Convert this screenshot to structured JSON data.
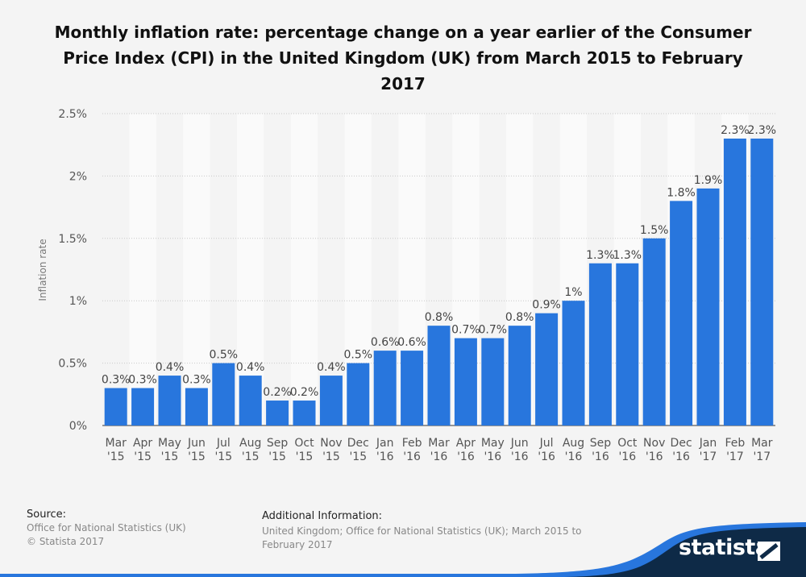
{
  "chart_data": {
    "type": "bar",
    "title": "Monthly inflation rate: percentage change on a year earlier of the Consumer Price Index (CPI) in the United Kingdom (UK) from March 2015 to February 2017",
    "ylabel": "Inflation rate",
    "xlabel": "",
    "categories": [
      "Mar '15",
      "Apr '15",
      "May '15",
      "Jun '15",
      "Jul '15",
      "Aug '15",
      "Sep '15",
      "Oct '15",
      "Nov '15",
      "Dec '15",
      "Jan '16",
      "Feb '16",
      "Mar '16",
      "Apr '16",
      "May '16",
      "Jun '16",
      "Jul '16",
      "Aug '16",
      "Sep '16",
      "Oct '16",
      "Nov '16",
      "Dec '16",
      "Jan '17",
      "Feb '17",
      "Mar '17"
    ],
    "values": [
      0.3,
      0.3,
      0.4,
      0.3,
      0.5,
      0.4,
      0.2,
      0.2,
      0.4,
      0.5,
      0.6,
      0.6,
      0.8,
      0.7,
      0.7,
      0.8,
      0.9,
      1,
      1.3,
      1.3,
      1.5,
      1.8,
      1.9,
      2.3,
      2.3
    ],
    "data_labels": [
      "0.3%",
      "0.3%",
      "0.4%",
      "0.3%",
      "0.5%",
      "0.4%",
      "0.2%",
      "0.2%",
      "0.4%",
      "0.5%",
      "0.6%",
      "0.6%",
      "0.8%",
      "0.7%",
      "0.7%",
      "0.8%",
      "0.9%",
      "1%",
      "1.3%",
      "1.3%",
      "1.5%",
      "1.8%",
      "1.9%",
      "2.3%",
      "2.3%"
    ],
    "ylim": [
      0,
      2.5
    ],
    "yticks": [
      0,
      0.5,
      1,
      1.5,
      2,
      2.5
    ],
    "ytick_labels": [
      "0%",
      "0.5%",
      "1%",
      "1.5%",
      "2%",
      "2.5%"
    ],
    "grid": true,
    "bar_color": "#2876dd"
  },
  "footer": {
    "source_label": "Source:",
    "source_text": "Office for National Statistics (UK)",
    "copyright": "© Statista 2017",
    "additional_label": "Additional Information:",
    "additional_text": "United Kingdom; Office for National Statistics (UK); March 2015 to February 2017",
    "logo": "statista"
  }
}
